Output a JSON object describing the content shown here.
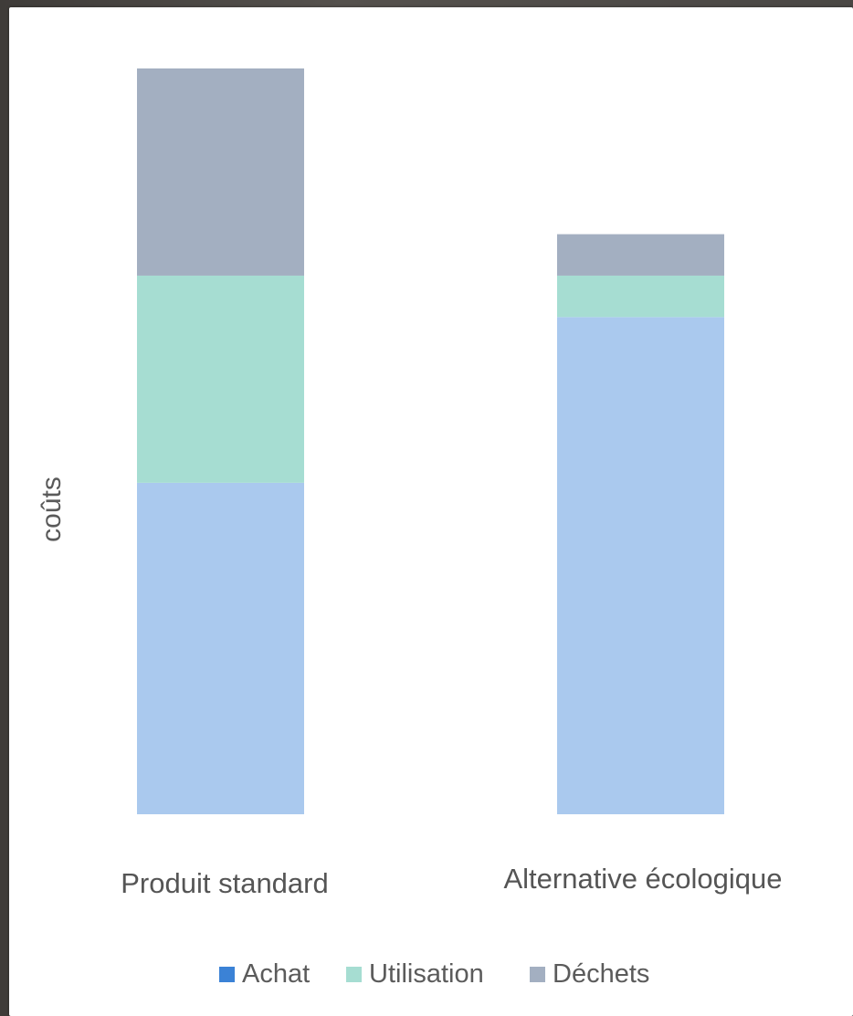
{
  "chart_data": {
    "type": "bar",
    "stacked": true,
    "title": "",
    "xlabel": "",
    "ylabel": "coûts",
    "categories": [
      "Produit standard",
      "Alternative écologique"
    ],
    "series": [
      {
        "name": "Achat",
        "color": "#aac9ee",
        "legend_color": "#3b82d6",
        "values": [
          40,
          60
        ]
      },
      {
        "name": "Utilisation",
        "color": "#a6ddd2",
        "legend_color": "#a6ddd2",
        "values": [
          25,
          5
        ]
      },
      {
        "name": "Déchets",
        "color": "#a3afc1",
        "legend_color": "#a3afc1",
        "values": [
          25,
          5
        ]
      }
    ],
    "ylim": [
      0,
      90
    ],
    "grid": false,
    "legend_position": "bottom"
  }
}
